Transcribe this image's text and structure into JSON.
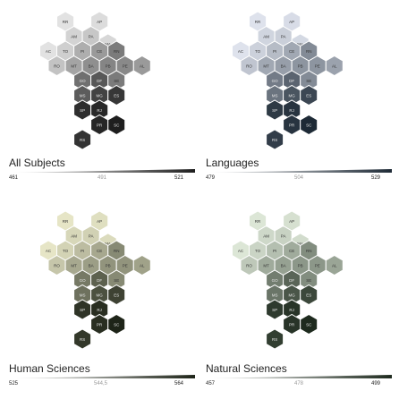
{
  "chart_data": [
    {
      "type": "hexmap",
      "title": "All Subjects",
      "legend": {
        "min": "461",
        "mid": "491",
        "max": "521"
      },
      "palette": [
        "#ececec",
        "#1e1e1e"
      ],
      "cells": [
        {
          "label": "RR",
          "value": 0.05
        },
        {
          "label": "AP",
          "value": 0.08
        },
        {
          "label": "AM",
          "value": 0.12
        },
        {
          "label": "PA",
          "value": 0.18
        },
        {
          "label": "MA",
          "value": 0.1
        },
        {
          "label": "AC",
          "value": 0.05
        },
        {
          "label": "TO",
          "value": 0.14
        },
        {
          "label": "PI",
          "value": 0.3
        },
        {
          "label": "CE",
          "value": 0.4
        },
        {
          "label": "RN",
          "value": 0.55
        },
        {
          "label": "RO",
          "value": 0.2
        },
        {
          "label": "MT",
          "value": 0.35
        },
        {
          "label": "BA",
          "value": 0.45
        },
        {
          "label": "PB",
          "value": 0.5
        },
        {
          "label": "PE",
          "value": 0.48
        },
        {
          "label": "AL",
          "value": 0.4
        },
        {
          "label": "GO",
          "value": 0.6
        },
        {
          "label": "DF",
          "value": 0.72
        },
        {
          "label": "SE",
          "value": 0.55
        },
        {
          "label": "MS",
          "value": 0.7
        },
        {
          "label": "MG",
          "value": 0.82
        },
        {
          "label": "ES",
          "value": 0.88
        },
        {
          "label": "SP",
          "value": 0.92
        },
        {
          "label": "RJ",
          "value": 0.95
        },
        {
          "label": "PR",
          "value": 0.96
        },
        {
          "label": "SC",
          "value": 1.0
        },
        {
          "label": "RS",
          "value": 0.9
        }
      ]
    },
    {
      "type": "hexmap",
      "title": "Languages",
      "legend": {
        "min": "479",
        "mid": "504",
        "max": "529"
      },
      "palette": [
        "#e8ecf6",
        "#1e2a36"
      ],
      "cells": [
        {
          "label": "RR",
          "value": 0.05
        },
        {
          "label": "AP",
          "value": 0.08
        },
        {
          "label": "AM",
          "value": 0.12
        },
        {
          "label": "PA",
          "value": 0.15
        },
        {
          "label": "MA",
          "value": 0.1
        },
        {
          "label": "AC",
          "value": 0.05
        },
        {
          "label": "TO",
          "value": 0.14
        },
        {
          "label": "PI",
          "value": 0.25
        },
        {
          "label": "CE",
          "value": 0.35
        },
        {
          "label": "RN",
          "value": 0.5
        },
        {
          "label": "RO",
          "value": 0.2
        },
        {
          "label": "MT",
          "value": 0.35
        },
        {
          "label": "BA",
          "value": 0.4
        },
        {
          "label": "PB",
          "value": 0.45
        },
        {
          "label": "PE",
          "value": 0.45
        },
        {
          "label": "AL",
          "value": 0.38
        },
        {
          "label": "GO",
          "value": 0.58
        },
        {
          "label": "DF",
          "value": 0.7
        },
        {
          "label": "SE",
          "value": 0.5
        },
        {
          "label": "MS",
          "value": 0.62
        },
        {
          "label": "MG",
          "value": 0.78
        },
        {
          "label": "ES",
          "value": 0.85
        },
        {
          "label": "SP",
          "value": 0.92
        },
        {
          "label": "RJ",
          "value": 0.95
        },
        {
          "label": "PR",
          "value": 0.95
        },
        {
          "label": "SC",
          "value": 1.0
        },
        {
          "label": "RS",
          "value": 0.9
        }
      ]
    },
    {
      "type": "hexmap",
      "title": "Human Sciences",
      "legend": {
        "min": "525",
        "mid": "544,5",
        "max": "564"
      },
      "palette": [
        "#f0efcf",
        "#1e2418"
      ],
      "cells": [
        {
          "label": "RR",
          "value": 0.05
        },
        {
          "label": "AP",
          "value": 0.08
        },
        {
          "label": "AM",
          "value": 0.12
        },
        {
          "label": "PA",
          "value": 0.15
        },
        {
          "label": "MA",
          "value": 0.1
        },
        {
          "label": "AC",
          "value": 0.05
        },
        {
          "label": "TO",
          "value": 0.14
        },
        {
          "label": "PI",
          "value": 0.25
        },
        {
          "label": "CE",
          "value": 0.35
        },
        {
          "label": "RN",
          "value": 0.5
        },
        {
          "label": "RO",
          "value": 0.2
        },
        {
          "label": "MT",
          "value": 0.35
        },
        {
          "label": "BA",
          "value": 0.4
        },
        {
          "label": "PB",
          "value": 0.45
        },
        {
          "label": "PE",
          "value": 0.45
        },
        {
          "label": "AL",
          "value": 0.38
        },
        {
          "label": "GO",
          "value": 0.58
        },
        {
          "label": "DF",
          "value": 0.7
        },
        {
          "label": "SE",
          "value": 0.5
        },
        {
          "label": "MS",
          "value": 0.62
        },
        {
          "label": "MG",
          "value": 0.78
        },
        {
          "label": "ES",
          "value": 0.85
        },
        {
          "label": "SP",
          "value": 0.92
        },
        {
          "label": "RJ",
          "value": 0.95
        },
        {
          "label": "PR",
          "value": 0.95
        },
        {
          "label": "SC",
          "value": 1.0
        },
        {
          "label": "RS",
          "value": 0.9
        }
      ]
    },
    {
      "type": "hexmap",
      "title": "Natural Sciences",
      "legend": {
        "min": "457",
        "mid": "478",
        "max": "499"
      },
      "palette": [
        "#e6f0e0",
        "#1e2a1e"
      ],
      "cells": [
        {
          "label": "RR",
          "value": 0.05
        },
        {
          "label": "AP",
          "value": 0.08
        },
        {
          "label": "AM",
          "value": 0.12
        },
        {
          "label": "PA",
          "value": 0.15
        },
        {
          "label": "MA",
          "value": 0.1
        },
        {
          "label": "AC",
          "value": 0.05
        },
        {
          "label": "TO",
          "value": 0.14
        },
        {
          "label": "PI",
          "value": 0.25
        },
        {
          "label": "CE",
          "value": 0.35
        },
        {
          "label": "RN",
          "value": 0.5
        },
        {
          "label": "RO",
          "value": 0.2
        },
        {
          "label": "MT",
          "value": 0.35
        },
        {
          "label": "BA",
          "value": 0.4
        },
        {
          "label": "PB",
          "value": 0.45
        },
        {
          "label": "PE",
          "value": 0.45
        },
        {
          "label": "AL",
          "value": 0.38
        },
        {
          "label": "GO",
          "value": 0.58
        },
        {
          "label": "DF",
          "value": 0.7
        },
        {
          "label": "SE",
          "value": 0.5
        },
        {
          "label": "MS",
          "value": 0.62
        },
        {
          "label": "MG",
          "value": 0.78
        },
        {
          "label": "ES",
          "value": 0.85
        },
        {
          "label": "SP",
          "value": 0.92
        },
        {
          "label": "RJ",
          "value": 0.95
        },
        {
          "label": "PR",
          "value": 0.95
        },
        {
          "label": "SC",
          "value": 1.0
        },
        {
          "label": "RS",
          "value": 0.9
        }
      ]
    }
  ]
}
